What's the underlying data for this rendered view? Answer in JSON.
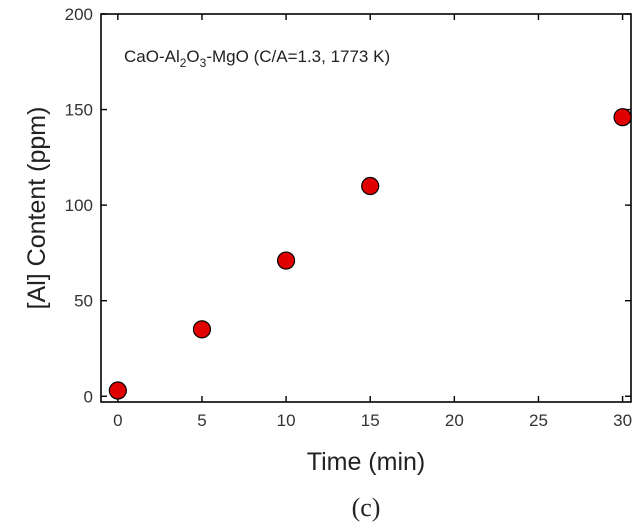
{
  "chart_data": {
    "type": "scatter",
    "annotation": {
      "parts": [
        {
          "text": "CaO-Al",
          "sub": false
        },
        {
          "text": "2",
          "sub": true
        },
        {
          "text": "O",
          "sub": false
        },
        {
          "text": "3",
          "sub": true
        },
        {
          "text": "-MgO (C/A=1.3, 1773 K)",
          "sub": false
        }
      ]
    },
    "xlabel": "Time (min)",
    "ylabel": "[Al] Content (ppm)",
    "panel_label": "(c)",
    "xlim": [
      -1,
      30.5
    ],
    "ylim": [
      -3,
      200
    ],
    "x_ticks": [
      0,
      5,
      10,
      15,
      20,
      25,
      30
    ],
    "y_ticks": [
      0,
      50,
      100,
      150,
      200
    ],
    "points": [
      {
        "x": 0,
        "y": 3
      },
      {
        "x": 5,
        "y": 35
      },
      {
        "x": 10,
        "y": 71
      },
      {
        "x": 15,
        "y": 110
      },
      {
        "x": 30,
        "y": 146
      }
    ],
    "marker_color": "#e00000",
    "marker_edge_color": "#000000",
    "grid": false
  }
}
